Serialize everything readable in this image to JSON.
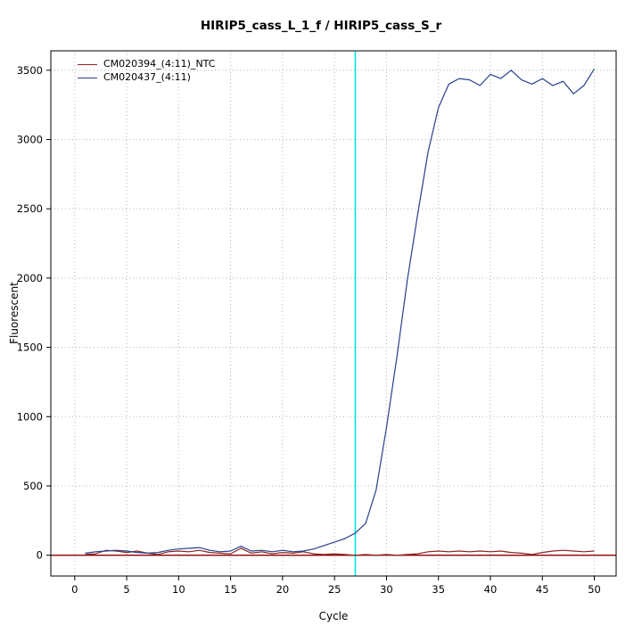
{
  "chart_data": {
    "type": "line",
    "title": "HIRIP5_cass_L_1_f / HIRIP5_cass_S_r",
    "xlabel": "Cycle",
    "ylabel": "Fluorescent",
    "xlim": [
      -2.3,
      52.1
    ],
    "ylim": [
      -150,
      3640
    ],
    "x_ticks": [
      0,
      5,
      10,
      15,
      20,
      25,
      30,
      35,
      40,
      45,
      50
    ],
    "y_ticks": [
      0,
      500,
      1000,
      1500,
      2000,
      2500,
      3000,
      3500
    ],
    "grid": true,
    "grid_color": "#b4b4b4",
    "legend_position": "top-left",
    "x": [
      1,
      2,
      3,
      4,
      5,
      6,
      7,
      8,
      9,
      10,
      11,
      12,
      13,
      14,
      15,
      16,
      17,
      18,
      19,
      20,
      21,
      22,
      23,
      24,
      25,
      26,
      27,
      28,
      29,
      30,
      31,
      32,
      33,
      34,
      35,
      36,
      37,
      38,
      39,
      40,
      41,
      42,
      43,
      44,
      45,
      46,
      47,
      48,
      49,
      50
    ],
    "series": [
      {
        "name": "CM020394_(4:11)_NTC",
        "color": "#8b2323",
        "values": [
          5,
          10,
          35,
          30,
          20,
          30,
          15,
          5,
          25,
          30,
          25,
          35,
          20,
          15,
          10,
          50,
          15,
          25,
          10,
          20,
          15,
          25,
          10,
          5,
          10,
          5,
          0,
          5,
          0,
          5,
          0,
          5,
          10,
          25,
          30,
          25,
          30,
          25,
          30,
          25,
          30,
          20,
          15,
          5,
          20,
          30,
          35,
          30,
          25,
          30
        ]
      },
      {
        "name": "CM020437_(4:11)",
        "color": "#27408b",
        "values": [
          15,
          25,
          30,
          35,
          30,
          20,
          15,
          20,
          35,
          45,
          50,
          55,
          35,
          25,
          30,
          65,
          30,
          35,
          25,
          35,
          25,
          30,
          45,
          70,
          95,
          120,
          160,
          230,
          470,
          920,
          1430,
          1980,
          2460,
          2910,
          3230,
          3400,
          3440,
          3430,
          3390,
          3470,
          3440,
          3500,
          3430,
          3400,
          3440,
          3390,
          3420,
          3330,
          3390,
          3510
        ]
      }
    ],
    "threshold": {
      "y": 0,
      "color": "#8b0000"
    },
    "vline": {
      "x": 27,
      "color": "#00e5e5"
    }
  }
}
